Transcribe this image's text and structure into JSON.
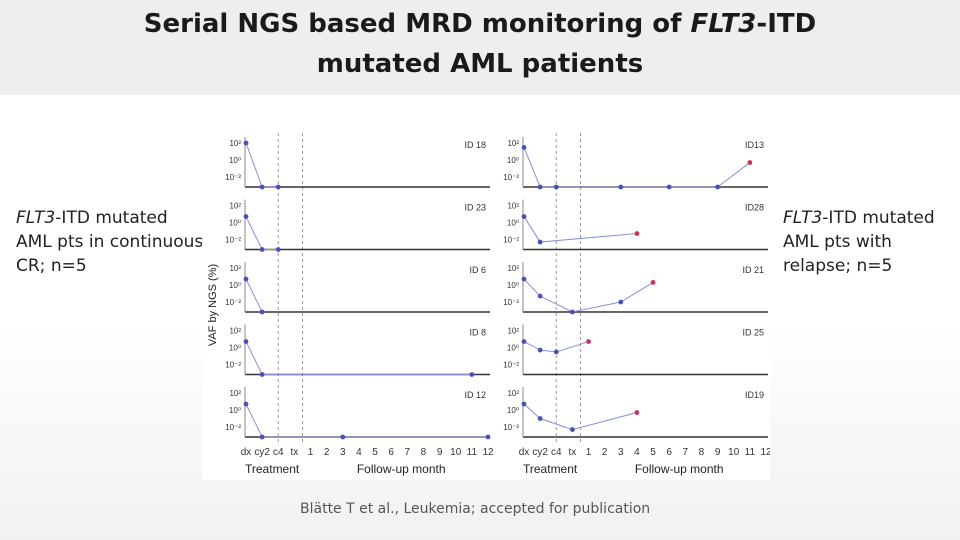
{
  "header": {
    "title_part1": "Serial NGS based MRD monitoring of ",
    "title_italic": "FLT3",
    "title_part2": "-ITD",
    "title_line2": "mutated AML patients"
  },
  "left_note": {
    "italic": "FLT3",
    "rest": "-ITD mutated AML pts in continuous CR; n=5"
  },
  "right_note": {
    "italic": "FLT3",
    "rest": "-ITD mutated AML pts with relapse; n=5"
  },
  "citation": "Blätte T et al., Leukemia; accepted for publication",
  "chart_data": [
    {
      "type": "line",
      "group": "continuous CR",
      "ylabel": "VAF by NGS (%)",
      "xlabel_left": "Treatment",
      "xlabel_right": "Follow-up month",
      "x_ticks": [
        "dx",
        "cy2",
        "c4",
        "tx",
        "1",
        "2",
        "3",
        "4",
        "5",
        "6",
        "7",
        "8",
        "9",
        "10",
        "11",
        "12"
      ],
      "y_ticks": [
        "10²",
        "10⁰",
        "10⁻²"
      ],
      "y_scale": "log",
      "panels": [
        {
          "id": "ID 18",
          "points": [
            [
              "dx",
              100
            ],
            [
              "cy2",
              "negative"
            ],
            [
              "c4",
              "negative"
            ]
          ]
        },
        {
          "id": "ID 23",
          "points": [
            [
              "dx",
              5
            ],
            [
              "cy2",
              "negative"
            ],
            [
              "c4",
              "negative"
            ]
          ]
        },
        {
          "id": "ID 6",
          "points": [
            [
              "dx",
              5
            ],
            [
              "cy2",
              "negative"
            ]
          ]
        },
        {
          "id": "ID 8",
          "points": [
            [
              "dx",
              5
            ],
            [
              "cy2",
              "negative"
            ],
            [
              "11",
              "negative"
            ]
          ]
        },
        {
          "id": "ID 12",
          "points": [
            [
              "dx",
              5
            ],
            [
              "cy2",
              "negative"
            ],
            [
              "3",
              "negative"
            ],
            [
              "12",
              "negative"
            ]
          ]
        }
      ]
    },
    {
      "type": "line",
      "group": "relapse",
      "xlabel_left": "Treatment",
      "xlabel_right": "Follow-up month",
      "x_ticks": [
        "dx",
        "cy2",
        "c4",
        "tx",
        "1",
        "2",
        "3",
        "4",
        "5",
        "6",
        "7",
        "8",
        "9",
        "10",
        "11",
        "12"
      ],
      "y_ticks": [
        "10²",
        "10⁰",
        "10⁻²"
      ],
      "y_scale": "log",
      "panels": [
        {
          "id": "ID13",
          "points": [
            [
              "dx",
              30
            ],
            [
              "cy2",
              "negative"
            ],
            [
              "c4",
              "negative"
            ],
            [
              "3",
              "negative"
            ],
            [
              "6",
              "negative"
            ],
            [
              "9",
              "negative"
            ],
            [
              "11",
              0.5
            ]
          ]
        },
        {
          "id": "ID28",
          "points": [
            [
              "dx",
              5
            ],
            [
              "cy2",
              0.005
            ],
            [
              "4",
              0.05
            ]
          ]
        },
        {
          "id": "ID 21",
          "points": [
            [
              "dx",
              5
            ],
            [
              "cy2",
              0.05
            ],
            [
              "tx",
              "negative"
            ],
            [
              "3",
              0.01
            ],
            [
              "5",
              2
            ]
          ]
        },
        {
          "id": "ID 25",
          "points": [
            [
              "dx",
              5
            ],
            [
              "cy2",
              0.5
            ],
            [
              "c4",
              0.3
            ],
            [
              "1",
              5
            ]
          ]
        },
        {
          "id": "ID19",
          "points": [
            [
              "dx",
              5
            ],
            [
              "cy2",
              0.1
            ],
            [
              "tx",
              0.005
            ],
            [
              "4",
              0.5
            ]
          ]
        }
      ]
    }
  ],
  "colors": {
    "points": "#4a50b8",
    "relapse_point": "#cc3355",
    "line": "#8a8fd8",
    "axis": "#333333"
  }
}
